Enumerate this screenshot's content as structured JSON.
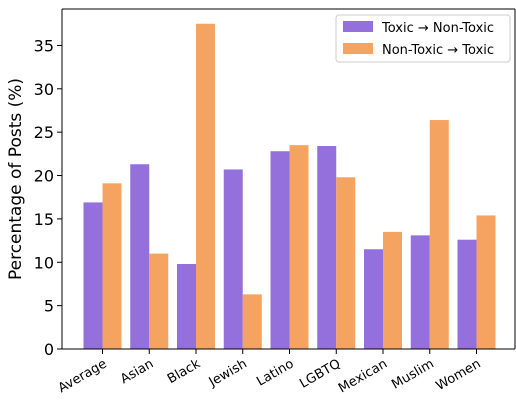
{
  "chart_data": {
    "type": "bar",
    "title": "",
    "xlabel": "",
    "ylabel": "Percentage of Posts (%)",
    "ylim": [
      0,
      39.2
    ],
    "yticks": [
      0,
      5,
      10,
      15,
      20,
      25,
      30,
      35
    ],
    "grid": false,
    "legend_position": "top-right",
    "categories": [
      "Average",
      "Asian",
      "Black",
      "Jewish",
      "Latino",
      "LGBTQ",
      "Mexican",
      "Muslim",
      "Women"
    ],
    "series": [
      {
        "name": "Toxic → Non-Toxic",
        "color": "#9370DB",
        "values": [
          16.9,
          21.3,
          9.8,
          20.7,
          22.8,
          23.4,
          11.5,
          13.1,
          12.6
        ]
      },
      {
        "name": "Non-Toxic → Toxic",
        "color": "#F4A460",
        "values": [
          19.1,
          11.0,
          37.5,
          6.3,
          23.5,
          19.8,
          13.5,
          26.4,
          15.4
        ]
      }
    ]
  }
}
